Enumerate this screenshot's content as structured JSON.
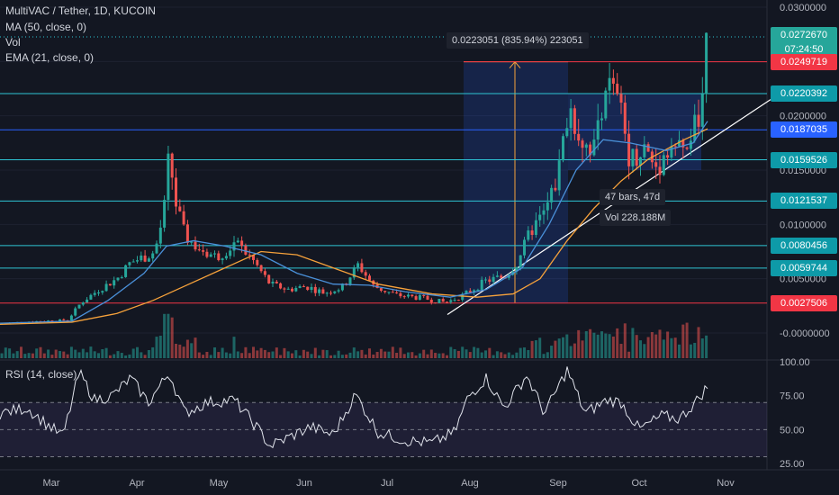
{
  "header": {
    "symbol": "MultiVAC / Tether, 1D, KUCOIN",
    "indicators": [
      "MA (50, close, 0)",
      "Vol",
      "EMA (21, close, 0)"
    ],
    "rsi_label": "RSI (14, close)"
  },
  "colors": {
    "background": "#131722",
    "up": "#26a69a",
    "down": "#ef5350",
    "ma50": "#f7a23b",
    "ema21": "#4a90d9",
    "rsi": "#e0e3eb",
    "hline_cyan": "#2ec4d4",
    "hline_red": "#f23645",
    "hline_blue": "#2962ff",
    "trend": "#ffffff",
    "measure": "#f7a23b"
  },
  "price_axis": {
    "ticks": [
      "0.0300000",
      "0.0250000",
      "0.0200000",
      "0.0150000",
      "0.0100000",
      "0.0050000",
      "-0.0000000"
    ],
    "rsi_ticks": [
      "100.00",
      "75.00",
      "50.00",
      "25.00"
    ]
  },
  "price_tags": [
    {
      "text": "0.0272670",
      "sub": "07:24:50",
      "kind": "last"
    },
    {
      "text": "0.0249719",
      "kind": "red"
    },
    {
      "text": "0.0220392",
      "kind": "cyan"
    },
    {
      "text": "0.0187035",
      "kind": "blue"
    },
    {
      "text": "0.0159526",
      "kind": "cyan"
    },
    {
      "text": "0.0121537",
      "kind": "cyan"
    },
    {
      "text": "0.0080456",
      "kind": "cyan"
    },
    {
      "text": "0.0059744",
      "kind": "cyan"
    },
    {
      "text": "0.0027506",
      "kind": "red"
    }
  ],
  "annotations": {
    "measure_top": "0.0223051 (835.94%) 223051",
    "measure_bars": "47 bars, 47d",
    "measure_vol": "Vol 228.188M"
  },
  "chart_data": {
    "type": "candlestick",
    "x_axis": [
      "Mar",
      "Apr",
      "May",
      "Jun",
      "Jul",
      "Aug",
      "Sep",
      "Oct",
      "Nov"
    ],
    "ylim": [
      -0.001,
      0.031
    ],
    "hlines": [
      0.0249719,
      0.0220392,
      0.0187035,
      0.0159526,
      0.0121537,
      0.0080456,
      0.0059744,
      0.0027506
    ],
    "close_path": [
      [
        0,
        0.0009
      ],
      [
        25,
        0.001
      ],
      [
        45,
        0.0011
      ],
      [
        75,
        0.0012
      ],
      [
        90,
        0.0028
      ],
      [
        110,
        0.004
      ],
      [
        130,
        0.005
      ],
      [
        145,
        0.0065
      ],
      [
        160,
        0.007
      ],
      [
        172,
        0.0075
      ],
      [
        182,
        0.011
      ],
      [
        188,
        0.0165
      ],
      [
        195,
        0.012
      ],
      [
        205,
        0.009
      ],
      [
        220,
        0.0078
      ],
      [
        240,
        0.007
      ],
      [
        262,
        0.0083
      ],
      [
        280,
        0.0068
      ],
      [
        300,
        0.0045
      ],
      [
        320,
        0.004
      ],
      [
        340,
        0.0043
      ],
      [
        360,
        0.0037
      ],
      [
        380,
        0.0042
      ],
      [
        398,
        0.0063
      ],
      [
        415,
        0.0043
      ],
      [
        440,
        0.0035
      ],
      [
        470,
        0.0032
      ],
      [
        495,
        0.0028
      ],
      [
        515,
        0.0035
      ],
      [
        540,
        0.0048
      ],
      [
        560,
        0.0052
      ],
      [
        575,
        0.0065
      ],
      [
        590,
        0.0095
      ],
      [
        605,
        0.011
      ],
      [
        620,
        0.0145
      ],
      [
        632,
        0.021
      ],
      [
        645,
        0.018
      ],
      [
        660,
        0.017
      ],
      [
        672,
        0.0232
      ],
      [
        688,
        0.021
      ],
      [
        700,
        0.016
      ],
      [
        715,
        0.017
      ],
      [
        730,
        0.0152
      ],
      [
        745,
        0.0175
      ],
      [
        760,
        0.0165
      ],
      [
        772,
        0.019
      ],
      [
        780,
        0.0205
      ],
      [
        786,
        0.0272
      ]
    ],
    "ma50_path": [
      [
        0,
        0.0008
      ],
      [
        80,
        0.001
      ],
      [
        130,
        0.0018
      ],
      [
        170,
        0.003
      ],
      [
        210,
        0.0045
      ],
      [
        250,
        0.006
      ],
      [
        290,
        0.0075
      ],
      [
        330,
        0.0072
      ],
      [
        370,
        0.006
      ],
      [
        420,
        0.0045
      ],
      [
        480,
        0.0036
      ],
      [
        530,
        0.0033
      ],
      [
        570,
        0.0036
      ],
      [
        600,
        0.005
      ],
      [
        630,
        0.0085
      ],
      [
        660,
        0.0115
      ],
      [
        690,
        0.014
      ],
      [
        720,
        0.016
      ],
      [
        760,
        0.0178
      ],
      [
        786,
        0.0188
      ]
    ],
    "ema21_path": [
      [
        0,
        0.0009
      ],
      [
        80,
        0.0011
      ],
      [
        120,
        0.003
      ],
      [
        160,
        0.0055
      ],
      [
        185,
        0.008
      ],
      [
        215,
        0.0085
      ],
      [
        250,
        0.008
      ],
      [
        290,
        0.0072
      ],
      [
        330,
        0.0055
      ],
      [
        370,
        0.0045
      ],
      [
        410,
        0.0044
      ],
      [
        450,
        0.0038
      ],
      [
        500,
        0.0033
      ],
      [
        540,
        0.004
      ],
      [
        580,
        0.006
      ],
      [
        610,
        0.01
      ],
      [
        640,
        0.015
      ],
      [
        670,
        0.0178
      ],
      [
        700,
        0.0175
      ],
      [
        740,
        0.0168
      ],
      [
        770,
        0.0175
      ],
      [
        786,
        0.0195
      ]
    ],
    "rsi_path": [
      [
        0,
        62
      ],
      [
        30,
        66
      ],
      [
        50,
        55
      ],
      [
        70,
        45
      ],
      [
        88,
        92
      ],
      [
        105,
        72
      ],
      [
        125,
        75
      ],
      [
        145,
        88
      ],
      [
        165,
        70
      ],
      [
        188,
        92
      ],
      [
        205,
        62
      ],
      [
        230,
        70
      ],
      [
        260,
        72
      ],
      [
        285,
        52
      ],
      [
        300,
        38
      ],
      [
        320,
        44
      ],
      [
        345,
        52
      ],
      [
        370,
        46
      ],
      [
        395,
        76
      ],
      [
        420,
        48
      ],
      [
        450,
        42
      ],
      [
        480,
        40
      ],
      [
        505,
        48
      ],
      [
        520,
        74
      ],
      [
        540,
        88
      ],
      [
        560,
        66
      ],
      [
        585,
        90
      ],
      [
        605,
        62
      ],
      [
        630,
        94
      ],
      [
        650,
        62
      ],
      [
        675,
        72
      ],
      [
        690,
        70
      ],
      [
        710,
        50
      ],
      [
        735,
        60
      ],
      [
        755,
        58
      ],
      [
        775,
        72
      ],
      [
        786,
        82
      ]
    ]
  }
}
